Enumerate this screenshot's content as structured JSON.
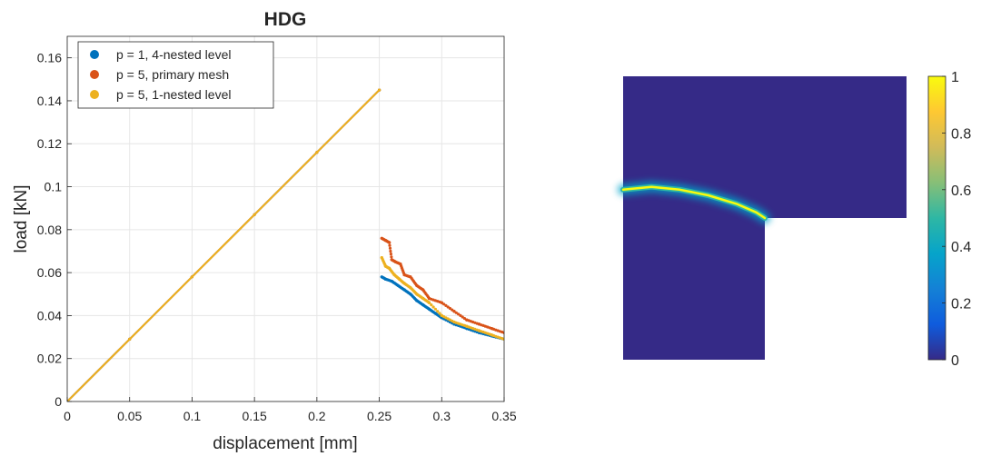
{
  "chart_data": [
    {
      "type": "scatter",
      "title": "HDG",
      "xlabel": "displacement [mm]",
      "ylabel": "load [kN]",
      "xlim": [
        0,
        0.35
      ],
      "ylim": [
        0,
        0.17
      ],
      "xticks": [
        0,
        0.05,
        0.1,
        0.15,
        0.2,
        0.25,
        0.3,
        0.35
      ],
      "xtick_labels": [
        "0",
        "0.05",
        "0.1",
        "0.15",
        "0.2",
        "0.25",
        "0.3",
        "0.35"
      ],
      "yticks": [
        0,
        0.02,
        0.04,
        0.06,
        0.08,
        0.1,
        0.12,
        0.14,
        0.16
      ],
      "ytick_labels": [
        "0",
        "0.02",
        "0.04",
        "0.06",
        "0.08",
        "0.1",
        "0.12",
        "0.14",
        "0.16"
      ],
      "grid": true,
      "legend_position": "top-left",
      "series": [
        {
          "name": "p = 1, 4-nested level",
          "color": "#0072BD",
          "x": [
            0,
            0.05,
            0.1,
            0.15,
            0.2,
            0.25,
            0.252,
            0.255,
            0.26,
            0.265,
            0.27,
            0.275,
            0.28,
            0.285,
            0.29,
            0.295,
            0.3,
            0.31,
            0.32,
            0.33,
            0.34,
            0.35
          ],
          "y": [
            0,
            0.029,
            0.058,
            0.087,
            0.116,
            0.145,
            0.058,
            0.057,
            0.056,
            0.054,
            0.052,
            0.05,
            0.047,
            0.045,
            0.043,
            0.041,
            0.039,
            0.036,
            0.034,
            0.032,
            0.0305,
            0.029
          ]
        },
        {
          "name": "p = 5, primary mesh",
          "color": "#D95319",
          "x": [
            0,
            0.05,
            0.1,
            0.15,
            0.2,
            0.25,
            0.252,
            0.255,
            0.258,
            0.26,
            0.263,
            0.267,
            0.27,
            0.275,
            0.28,
            0.285,
            0.29,
            0.3,
            0.31,
            0.32,
            0.33,
            0.34,
            0.35
          ],
          "y": [
            0,
            0.029,
            0.058,
            0.087,
            0.116,
            0.145,
            0.076,
            0.075,
            0.074,
            0.066,
            0.065,
            0.064,
            0.059,
            0.058,
            0.054,
            0.052,
            0.048,
            0.046,
            0.042,
            0.038,
            0.036,
            0.034,
            0.032
          ]
        },
        {
          "name": "p = 5, 1-nested level",
          "color": "#EDB120",
          "x": [
            0,
            0.05,
            0.1,
            0.15,
            0.2,
            0.25,
            0.252,
            0.255,
            0.258,
            0.262,
            0.266,
            0.27,
            0.275,
            0.28,
            0.285,
            0.29,
            0.3,
            0.31,
            0.32,
            0.33,
            0.34,
            0.35
          ],
          "y": [
            0,
            0.029,
            0.058,
            0.087,
            0.116,
            0.145,
            0.067,
            0.063,
            0.062,
            0.059,
            0.057,
            0.055,
            0.053,
            0.05,
            0.048,
            0.046,
            0.04,
            0.037,
            0.035,
            0.033,
            0.031,
            0.029
          ]
        }
      ]
    },
    {
      "type": "heatmap",
      "title": "",
      "colorbar_range": [
        0,
        1
      ],
      "colorbar_ticks": [
        0,
        0.2,
        0.4,
        0.6,
        0.8,
        1
      ],
      "colorbar_tick_labels": [
        "0",
        "0.2",
        "0.4",
        "0.6",
        "0.8",
        "1"
      ],
      "colormap": "parula",
      "colormap_colors": [
        "#352A87",
        "#0F5CDD",
        "#1481D6",
        "#06A4CA",
        "#2EB7A4",
        "#87BF77",
        "#D1BB59",
        "#FEC832",
        "#F9FB0E"
      ],
      "background_value": 0.02,
      "geometry": "L-shaped domain",
      "crack_path": [
        [
          -0.5,
          0.1
        ],
        [
          -0.4,
          0.11
        ],
        [
          -0.3,
          0.1
        ],
        [
          -0.2,
          0.08
        ],
        [
          -0.1,
          0.05
        ],
        [
          -0.03,
          0.02
        ],
        [
          0,
          0
        ]
      ],
      "crack_peak_value": 1.0
    }
  ]
}
